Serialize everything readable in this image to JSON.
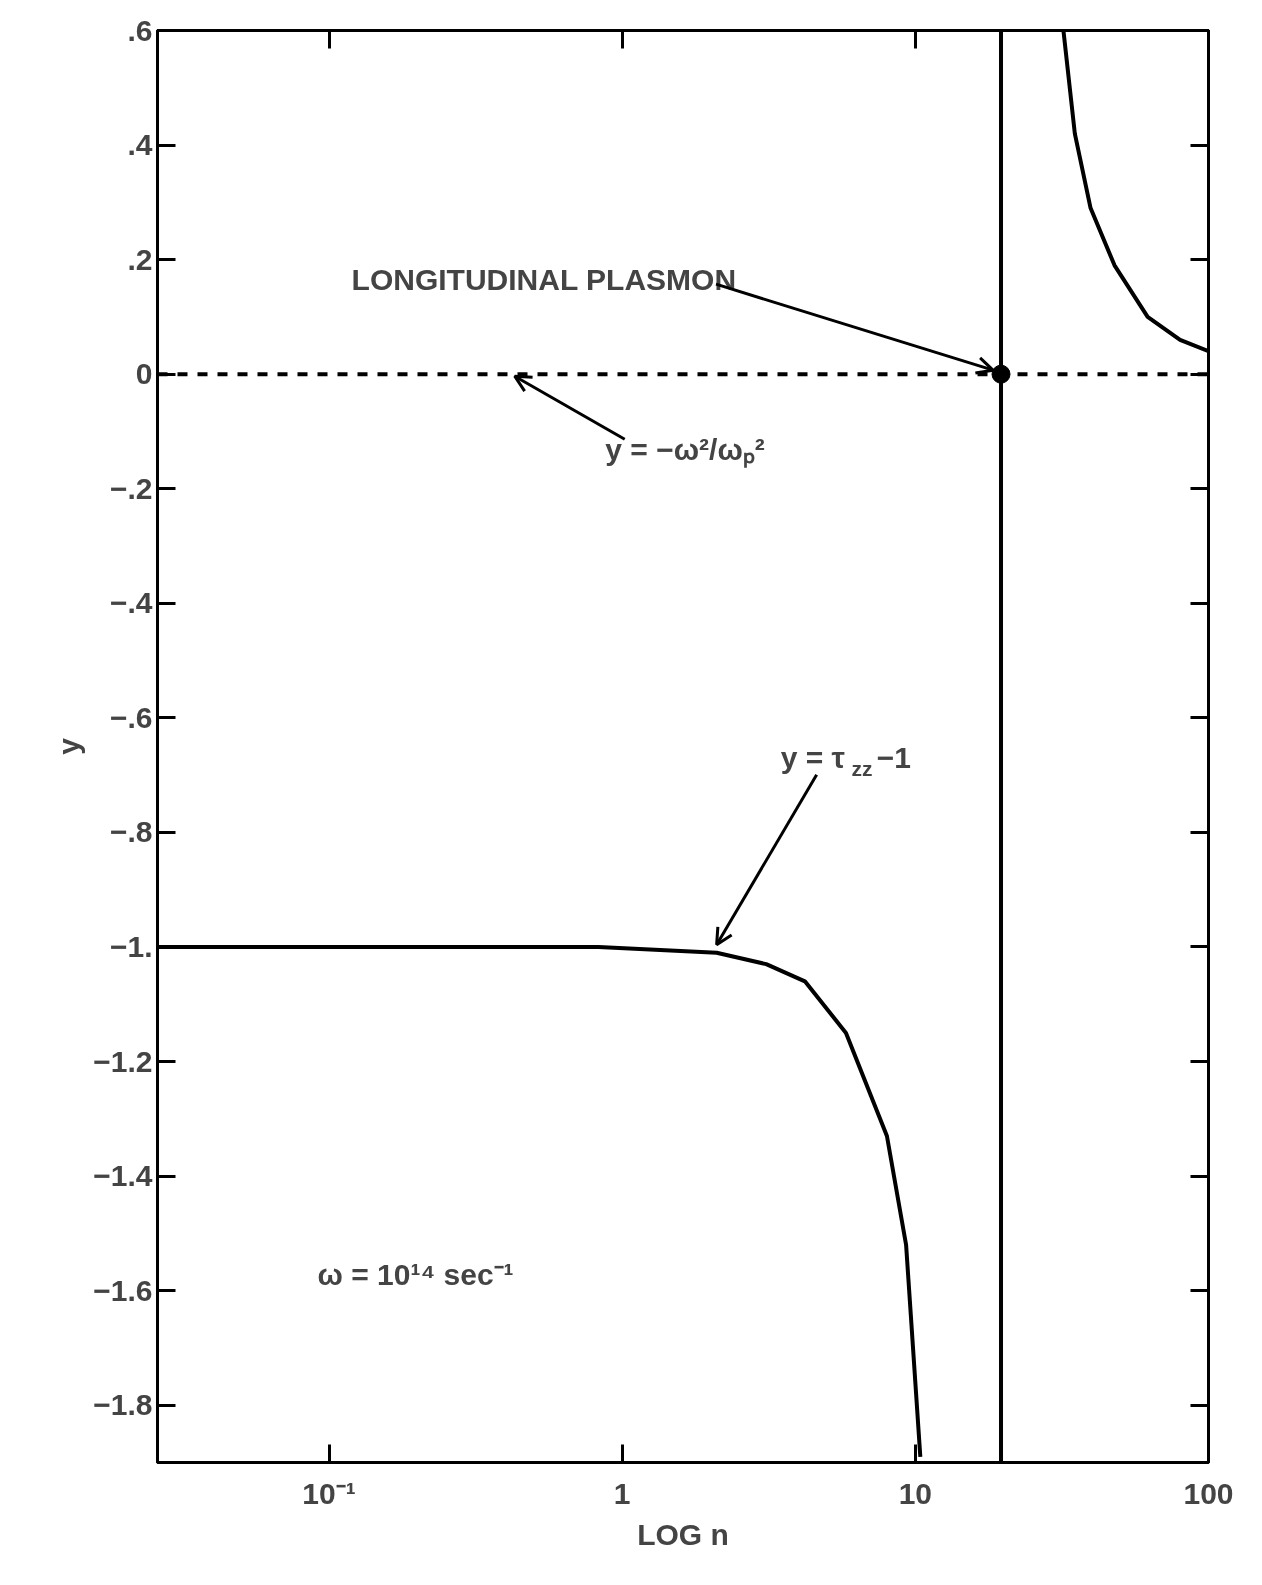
{
  "chart_data": {
    "type": "line",
    "xlabel": "LOG n",
    "ylabel": "y",
    "log": "x",
    "grid": false,
    "xlim": [
      0.026,
      100
    ],
    "ylim": [
      -1.9,
      0.6
    ],
    "xticks": [
      {
        "value": 0.1,
        "label": "10⁻¹"
      },
      1,
      10,
      100
    ],
    "yticks": [
      {
        "value": 0.6,
        "label": ".6"
      },
      {
        "value": 0.4,
        "label": ".4"
      },
      {
        "value": 0.2,
        "label": ".2"
      },
      0,
      {
        "value": -0.2,
        "label": "−.2"
      },
      {
        "value": -0.4,
        "label": "−.4"
      },
      {
        "value": -0.6,
        "label": "−.6"
      },
      {
        "value": -0.8,
        "label": "−.8"
      },
      {
        "value": -1,
        "label": "−1."
      },
      {
        "value": -1.2,
        "label": "−1.2"
      },
      {
        "value": -1.4,
        "label": "−1.4"
      },
      {
        "value": -1.6,
        "label": "−1.6"
      },
      {
        "value": -1.8,
        "label": "−1.8"
      }
    ],
    "series": [
      {
        "type": "line",
        "color": "#000000",
        "line_style": "solid",
        "x": [
          0.026,
          0.83,
          2.1,
          3.1,
          4.2,
          5.8,
          8.0,
          9.3,
          10.4
        ],
        "values": [
          -1.0,
          -1.0,
          -1.01,
          -1.03,
          -1.06,
          -1.15,
          -1.33,
          -1.52,
          -1.89
        ]
      },
      {
        "type": "line",
        "color": "#000000",
        "line_style": "solid",
        "x": [
          19.6,
          19.6
        ],
        "values": [
          -1.9,
          0.6
        ]
      },
      {
        "type": "line",
        "color": "#000000",
        "line_style": "solid",
        "x": [
          32,
          35,
          39.6,
          47.8,
          62,
          80,
          100
        ],
        "values": [
          0.6,
          0.42,
          0.29,
          0.19,
          0.1,
          0.06,
          0.04
        ]
      },
      {
        "type": "line",
        "color": "#000000",
        "line_style": "dashed",
        "x": [
          0.026,
          100
        ],
        "values": [
          0,
          0
        ]
      },
      {
        "type": "scatter",
        "color": "#000000",
        "marker": "circle",
        "x": [
          19.6
        ],
        "values": [
          0
        ]
      }
    ],
    "annotations": [
      {
        "text": "LONGITUDINAL  PLASMON",
        "x": 19.6,
        "y": 0
      },
      {
        "text": "y = −ω²/ωₚ²",
        "x": 0.43,
        "y": 0
      },
      {
        "text": "y = τ$_{zz}$−1",
        "x": 2.1,
        "y": -1.01
      },
      "ω = 10¹⁴ sec⁻¹"
    ]
  }
}
